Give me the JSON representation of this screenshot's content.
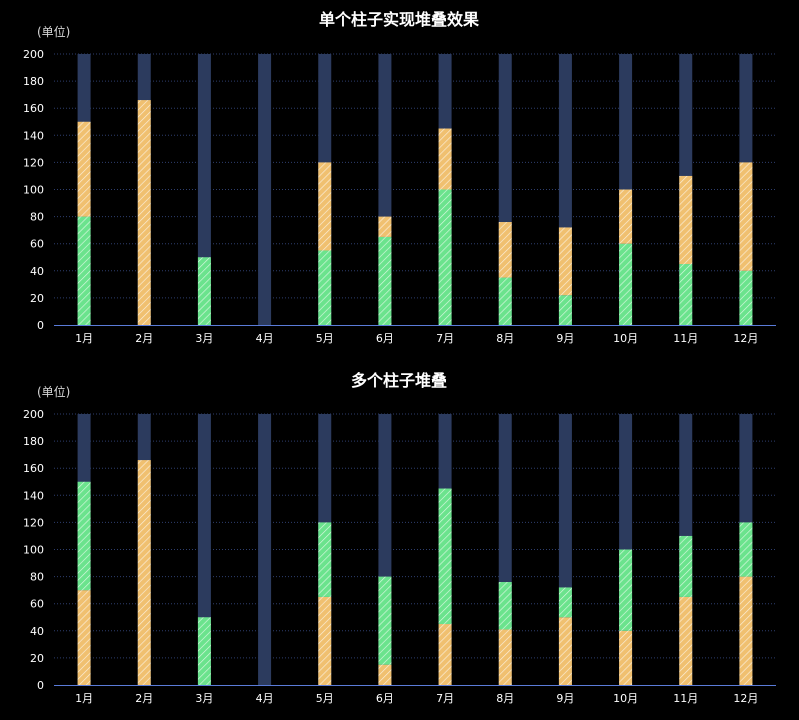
{
  "chart_data": [
    {
      "type": "bar",
      "stacked": true,
      "title": "单个柱子实现堆叠效果",
      "ylabel": "(单位)",
      "ylim": [
        0,
        200
      ],
      "yticks": [
        0,
        20,
        40,
        60,
        80,
        100,
        120,
        140,
        160,
        180,
        200
      ],
      "categories": [
        "1月",
        "2月",
        "3月",
        "4月",
        "5月",
        "6月",
        "7月",
        "8月",
        "9月",
        "10月",
        "11月",
        "12月"
      ],
      "background_value": 200,
      "series": [
        {
          "color": "#6be38d",
          "pattern": "hatch",
          "values": [
            80,
            0,
            50,
            0,
            55,
            65,
            100,
            35,
            22,
            60,
            45,
            40
          ]
        },
        {
          "color": "#f0c070",
          "pattern": "hatch",
          "values": [
            70,
            166,
            0,
            0,
            65,
            15,
            45,
            41,
            50,
            40,
            65,
            80
          ]
        }
      ],
      "background_color": "#2c3b5e",
      "grid": true
    },
    {
      "type": "bar",
      "stacked": true,
      "title": "多个柱子堆叠",
      "ylabel": "(单位)",
      "ylim": [
        0,
        200
      ],
      "yticks": [
        0,
        20,
        40,
        60,
        80,
        100,
        120,
        140,
        160,
        180,
        200
      ],
      "categories": [
        "1月",
        "2月",
        "3月",
        "4月",
        "5月",
        "6月",
        "7月",
        "8月",
        "9月",
        "10月",
        "11月",
        "12月"
      ],
      "background_value": 200,
      "series": [
        {
          "color": "#f0c070",
          "pattern": "hatch",
          "values": [
            70,
            166,
            0,
            0,
            65,
            15,
            45,
            41,
            50,
            40,
            65,
            80
          ]
        },
        {
          "color": "#6be38d",
          "pattern": "hatch",
          "values": [
            80,
            0,
            50,
            0,
            55,
            65,
            100,
            35,
            22,
            60,
            45,
            40
          ]
        }
      ],
      "background_color": "#2c3b5e",
      "grid": true
    }
  ]
}
